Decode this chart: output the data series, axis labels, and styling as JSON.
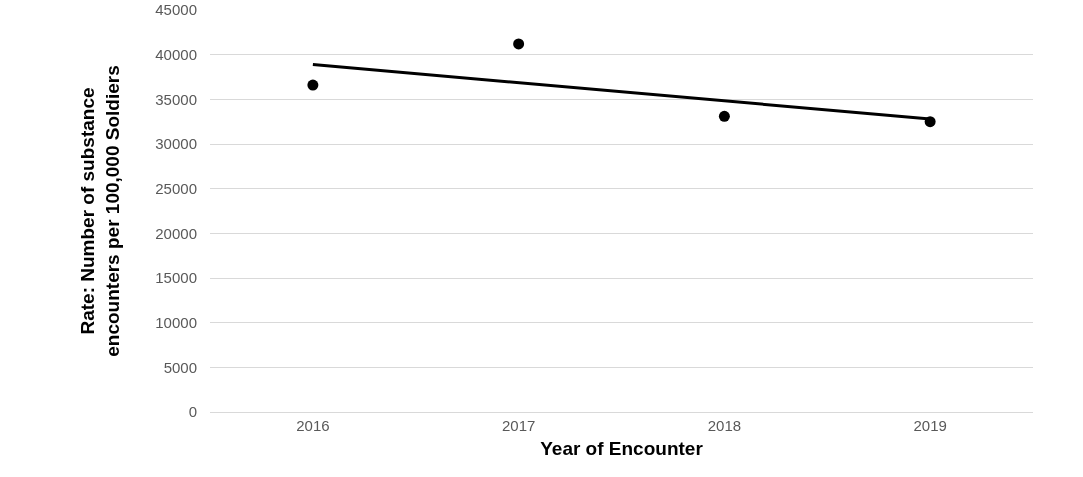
{
  "chart_data": {
    "type": "scatter",
    "xlabel": "Year of Encounter",
    "ylabel": "Rate: Number of substance encounters per 100,000 Soldiers",
    "x": [
      2016,
      2017,
      2018,
      2019
    ],
    "series": [
      {
        "color": "#000000",
        "values": [
          36600,
          41200,
          33100,
          32500
        ],
        "marker": "circle"
      },
      {
        "type": "line",
        "color": "#000000",
        "x": [
          2016,
          2019
        ],
        "values": [
          38900,
          32800
        ],
        "marker": "none",
        "line_style": "solid"
      }
    ],
    "xlim": [
      2015.5,
      2019.5
    ],
    "xticks": [
      2016,
      2017,
      2018,
      2019
    ],
    "ylim": [
      0,
      45000
    ],
    "yticks": [
      0,
      5000,
      10000,
      15000,
      20000,
      25000,
      30000,
      35000,
      40000,
      45000
    ],
    "grid": "y"
  }
}
